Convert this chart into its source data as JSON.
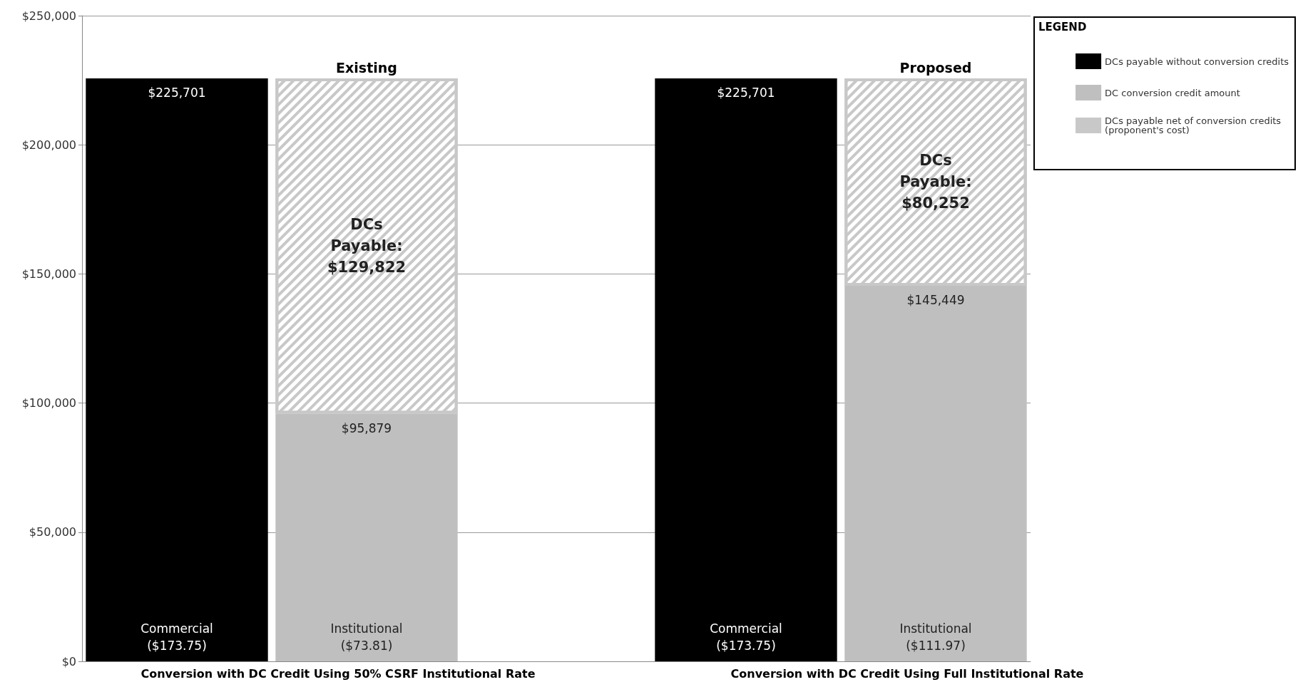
{
  "chart_data": {
    "type": "bar",
    "stacked": true,
    "categories": [
      "Commercial\n($173.75)",
      "Institutional\n($73.81)",
      null,
      "Commercial\n($173.75)",
      "Institutional\n($111.97)"
    ],
    "series": [
      {
        "name": "DCs payable without conversion credits",
        "color": "#000000",
        "values": [
          225701,
          null,
          null,
          225701,
          null
        ],
        "value_labels": [
          "$225,701",
          null,
          null,
          "$225,701",
          null
        ]
      },
      {
        "name": "DC conversion credit amount",
        "color": "#bfbfbf",
        "values": [
          null,
          95879,
          null,
          null,
          145449
        ],
        "value_labels": [
          null,
          "$95,879",
          null,
          null,
          "$145,449"
        ]
      },
      {
        "name": "DCs payable net of conversion credits (proponent's cost)",
        "color": "#c8c8c8",
        "values": [
          null,
          129822,
          null,
          null,
          80252
        ],
        "value_labels": [
          null,
          "DCs\nPayable:\n$129,822",
          null,
          null,
          "DCs\nPayable:\n$80,252"
        ]
      }
    ],
    "ylim": [
      0,
      250000
    ],
    "yticks": [
      {
        "value": 0,
        "label": "$0"
      },
      {
        "value": 50000,
        "label": "$50,000"
      },
      {
        "value": 100000,
        "label": "$100,000"
      },
      {
        "value": 150000,
        "label": "$150,000"
      },
      {
        "value": 200000,
        "label": "$200,000"
      },
      {
        "value": 250000,
        "label": "$250,000"
      }
    ],
    "grid": "y",
    "legend": "top right",
    "legend_title": "LEGEND",
    "annotations": [
      "Existing",
      "Proposed",
      "Conversion with DC Credit Using 50% CSRF Institutional Rate",
      "Conversion with DC Credit Using Full Institutional Rate"
    ]
  }
}
